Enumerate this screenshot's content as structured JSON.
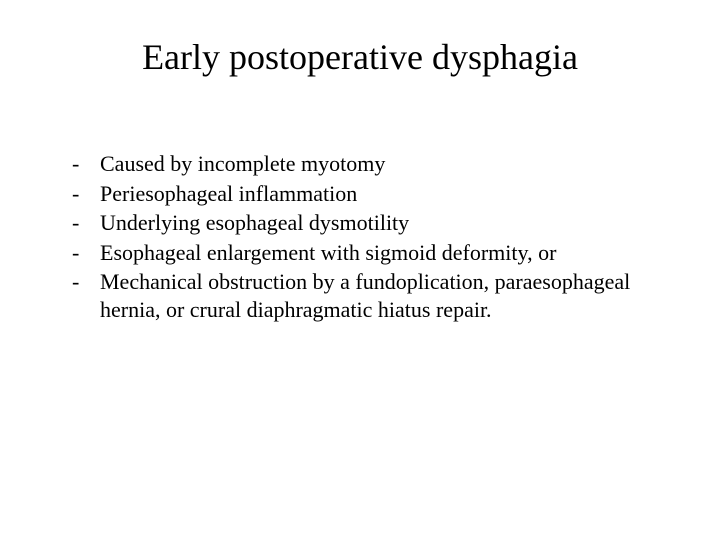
{
  "slide": {
    "title": "Early postoperative dysphagia",
    "title_fontsize": 36,
    "body_fontsize": 22,
    "background_color": "#ffffff",
    "text_color": "#000000",
    "font_family": "Times New Roman",
    "bullets": [
      "Caused by incomplete myotomy",
      "Periesophageal inflammation",
      "Underlying esophageal dysmotility",
      "Esophageal enlargement with sigmoid deformity, or",
      "Mechanical obstruction by a fundoplication, paraesophageal hernia, or crural diaphragmatic hiatus repair."
    ],
    "bullet_marker": "-"
  }
}
